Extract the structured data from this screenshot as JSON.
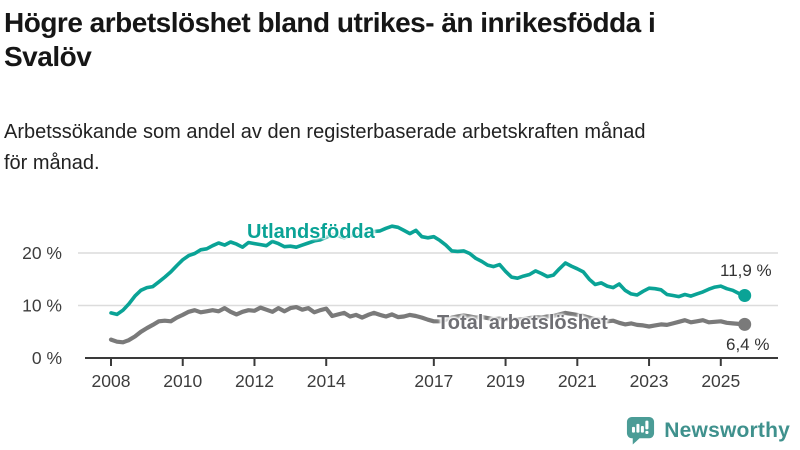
{
  "header": {
    "title_lines": [
      "Högre arbetslöshet bland utrikes- än inrikesfödda i",
      "Svalöv"
    ],
    "subtitle_lines": [
      "Arbetssökande som andel av den registerbaserade arbetskraften månad",
      "för månad."
    ]
  },
  "footer": {
    "brand": "Newsworthy"
  },
  "colors": {
    "accent_teal": "#0aa396",
    "line_gray": "#7a7a7a",
    "gridline": "#dcdcdc",
    "axis": "#3a3a3a",
    "axis_text": "#3d3d3d",
    "value_text": "#333333",
    "logo_icon": "#4b9c96",
    "logo_text": "#3f918d"
  },
  "chart_data": {
    "type": "line",
    "title": "Högre arbetslöshet bland utrikes- än inrikesfödda i Svalöv",
    "subtitle": "Arbetssökande som andel av den registerbaserade arbetskraften månad för månad.",
    "xlabel": "",
    "ylabel": "",
    "grid": "horizontal",
    "legend_position": "inline-labels",
    "x_start": 2008.0,
    "x_step_years": 0.166667,
    "x_end": 2025.67,
    "x_ticks": [
      2008,
      2010,
      2012,
      2014,
      2017,
      2019,
      2021,
      2023,
      2025
    ],
    "y_ticks": [
      0,
      10,
      20
    ],
    "y_tick_suffix": " %",
    "ylim": [
      0,
      27
    ],
    "series": [
      {
        "name": "Utlandsfödda",
        "color": "#0aa396",
        "end_value": 11.9,
        "end_label": "11,9 %",
        "values": [
          8.6,
          8.3,
          9.1,
          10.3,
          11.8,
          12.9,
          13.4,
          13.6,
          14.5,
          15.4,
          16.4,
          17.6,
          18.7,
          19.5,
          19.9,
          20.6,
          20.8,
          21.4,
          21.9,
          21.5,
          22.1,
          21.7,
          21.1,
          22.0,
          21.8,
          21.6,
          21.4,
          22.2,
          21.8,
          21.2,
          21.3,
          21.1,
          21.5,
          21.9,
          22.3,
          22.5,
          23.0,
          23.5,
          23.3,
          22.9,
          23.3,
          23.5,
          23.4,
          23.9,
          24.1,
          24.2,
          24.7,
          25.1,
          24.9,
          24.3,
          23.7,
          24.3,
          23.1,
          22.9,
          23.1,
          22.4,
          21.5,
          20.4,
          20.3,
          20.4,
          19.9,
          19.0,
          18.4,
          17.7,
          17.4,
          17.8,
          16.5,
          15.4,
          15.2,
          15.6,
          15.9,
          16.6,
          16.1,
          15.5,
          15.8,
          17.0,
          18.1,
          17.5,
          17.0,
          16.4,
          15.0,
          14.0,
          14.3,
          13.7,
          13.4,
          14.1,
          12.9,
          12.2,
          12.0,
          12.7,
          13.3,
          13.2,
          13.0,
          12.1,
          11.9,
          11.7,
          12.1,
          11.8,
          12.2,
          12.6,
          13.1,
          13.5,
          13.7,
          13.2,
          12.9,
          12.3,
          11.9
        ]
      },
      {
        "name": "Total arbetslöshet",
        "color": "#7a7a7a",
        "end_value": 6.4,
        "end_label": "6,4 %",
        "values": [
          3.5,
          3.1,
          3.0,
          3.4,
          4.1,
          5.0,
          5.7,
          6.3,
          7.0,
          7.1,
          7.0,
          7.7,
          8.2,
          8.8,
          9.1,
          8.7,
          8.9,
          9.1,
          8.9,
          9.5,
          8.8,
          8.3,
          8.8,
          9.1,
          9.0,
          9.6,
          9.2,
          8.8,
          9.5,
          8.9,
          9.5,
          9.7,
          9.2,
          9.5,
          8.7,
          9.1,
          9.4,
          8.0,
          8.3,
          8.6,
          7.9,
          8.2,
          7.7,
          8.2,
          8.6,
          8.2,
          7.9,
          8.3,
          7.8,
          7.9,
          8.2,
          8.0,
          7.7,
          7.3,
          7.0,
          7.0,
          7.3,
          7.7,
          7.9,
          8.1,
          7.9,
          7.7,
          7.8,
          7.6,
          7.4,
          7.5,
          7.3,
          7.5,
          7.3,
          7.4,
          7.6,
          7.8,
          7.7,
          7.9,
          8.0,
          8.3,
          8.6,
          8.4,
          8.2,
          8.0,
          7.7,
          7.4,
          7.2,
          7.0,
          7.1,
          6.7,
          6.4,
          6.6,
          6.3,
          6.2,
          6.0,
          6.2,
          6.4,
          6.3,
          6.6,
          6.9,
          7.2,
          6.8,
          7.0,
          7.2,
          6.8,
          6.9,
          7.0,
          6.7,
          6.6,
          6.5,
          6.4
        ]
      }
    ]
  }
}
